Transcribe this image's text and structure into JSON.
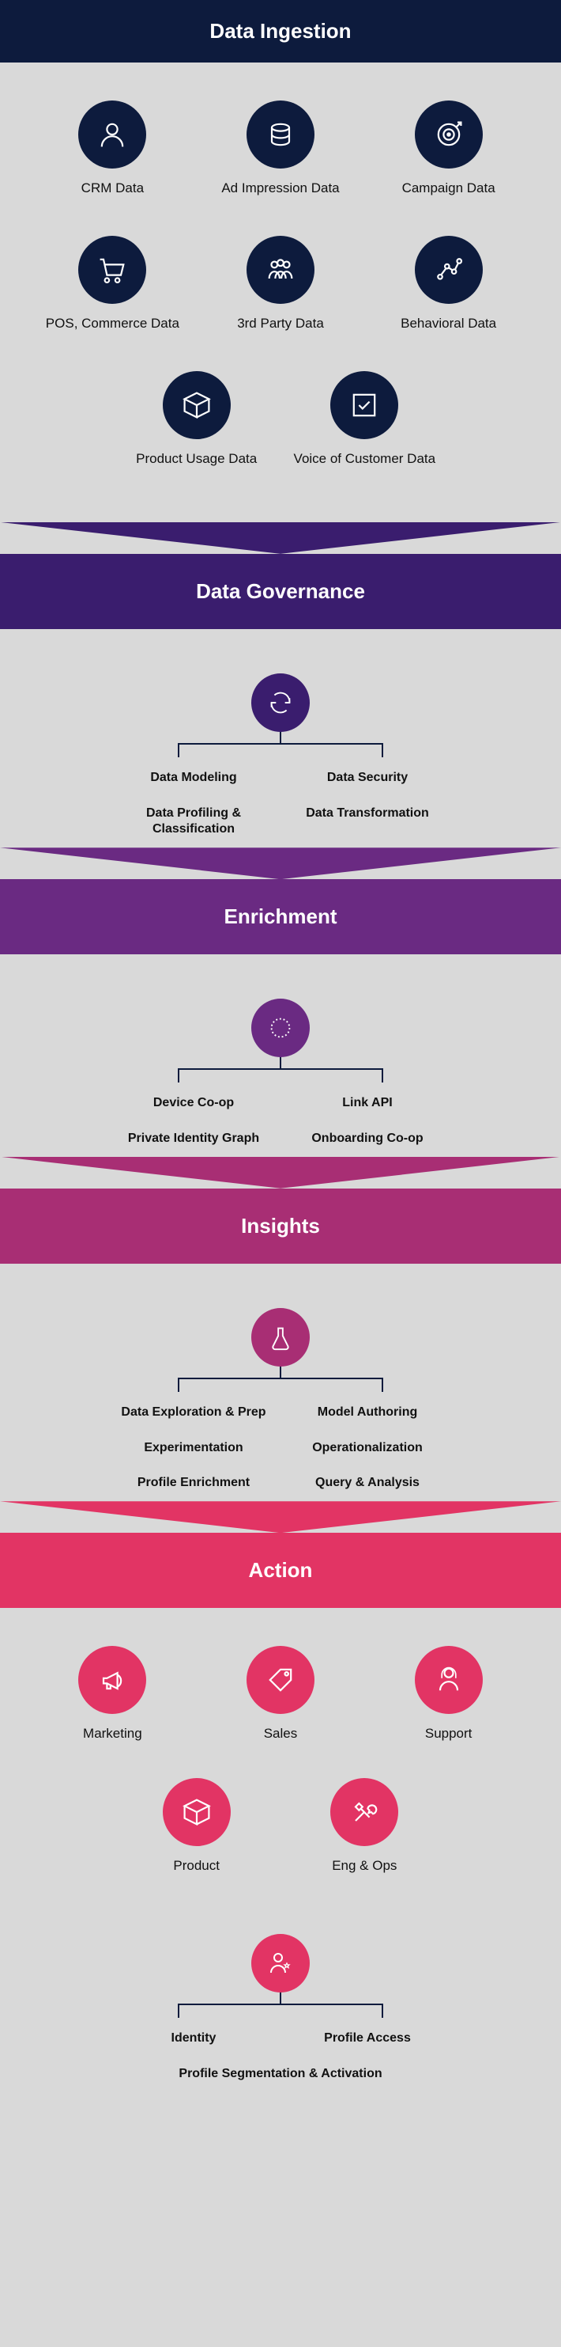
{
  "colors": {
    "ingestion_header": "#0d1b3d",
    "ingestion_circle": "#0d1b3d",
    "governance_header": "#3a1d6e",
    "governance_circle": "#3a1d6e",
    "enrichment_header": "#6a2a82",
    "enrichment_circle": "#6a2a82",
    "insights_header": "#a82e74",
    "insights_circle": "#a82e74",
    "action_header": "#e23464",
    "action_circle": "#e23464",
    "body_bg": "#d9d9d9",
    "connector": "#0d1b3d",
    "text": "#111111"
  },
  "ingestion": {
    "title": "Data Ingestion",
    "items": [
      {
        "label": "CRM Data",
        "icon": "person"
      },
      {
        "label": "Ad Impression Data",
        "icon": "stack"
      },
      {
        "label": "Campaign Data",
        "icon": "target"
      },
      {
        "label": "POS, Commerce Data",
        "icon": "cart"
      },
      {
        "label": "3rd Party Data",
        "icon": "people"
      },
      {
        "label": "Behavioral Data",
        "icon": "graph"
      },
      {
        "label": "Product Usage Data",
        "icon": "box"
      },
      {
        "label": "Voice of Customer Data",
        "icon": "check"
      }
    ]
  },
  "governance": {
    "title": "Data Governance",
    "icon": "refresh",
    "items": [
      [
        "Data Modeling",
        "Data Security"
      ],
      [
        "Data Profiling & Classification",
        "Data Transformation"
      ]
    ]
  },
  "enrichment": {
    "title": "Enrichment",
    "icon": "burst",
    "items": [
      [
        "Device Co-op",
        "Link API"
      ],
      [
        "Private Identity Graph",
        "Onboarding Co-op"
      ]
    ]
  },
  "insights": {
    "title": "Insights",
    "icon": "flask",
    "items": [
      [
        "Data Exploration & Prep",
        "Model Authoring"
      ],
      [
        "Experimentation",
        "Operationalization"
      ],
      [
        "Profile Enrichment",
        "Query & Analysis"
      ]
    ]
  },
  "action": {
    "title": "Action",
    "items": [
      {
        "label": "Marketing",
        "icon": "megaphone"
      },
      {
        "label": "Sales",
        "icon": "tag"
      },
      {
        "label": "Support",
        "icon": "headset"
      },
      {
        "label": "Product",
        "icon": "box"
      },
      {
        "label": "Eng & Ops",
        "icon": "tools"
      }
    ],
    "tree_icon": "person-star",
    "tree_items": [
      [
        "Identity",
        "Profile Access"
      ],
      [
        "Profile Segmentation & Activation"
      ]
    ]
  }
}
